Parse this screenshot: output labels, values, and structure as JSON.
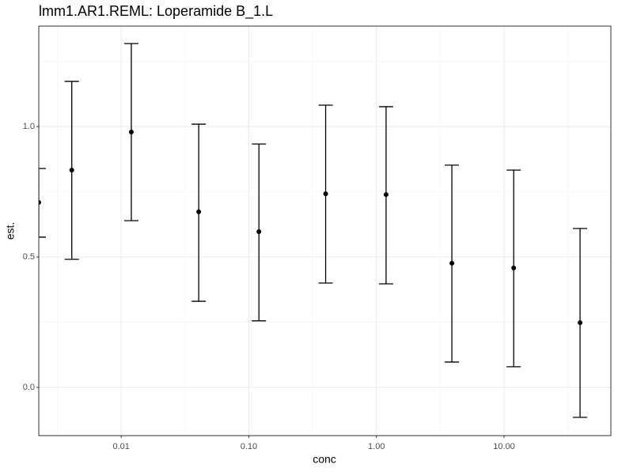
{
  "chart_data": {
    "type": "errorbar",
    "title": "lmm1.AR1.REML: Loperamide B_1.L",
    "x_label": "conc",
    "y_label": "est.",
    "x_scale": "log",
    "grid": true,
    "x": [
      0.00226,
      0.0041,
      0.012,
      0.0405,
      0.12,
      0.4,
      1.19,
      3.9,
      11.9,
      39.4
    ],
    "series": [
      {
        "color": "#000000",
        "values": [
          0.709,
          0.833,
          0.979,
          0.673,
          0.597,
          0.742,
          0.739,
          0.476,
          0.458,
          0.248
        ],
        "lower": [
          0.576,
          0.491,
          0.639,
          0.33,
          0.255,
          0.4,
          0.397,
          0.097,
          0.079,
          -0.115
        ],
        "upper": [
          0.839,
          1.173,
          1.318,
          1.009,
          0.933,
          1.082,
          1.076,
          0.852,
          0.833,
          0.609
        ]
      }
    ],
    "xlim": [
      0.00226,
      68.7
    ],
    "ylim": [
      -0.185,
      1.385
    ],
    "xticks": [
      0.01,
      {
        "value": 0.1,
        "label": "0.10"
      },
      {
        "value": 1,
        "label": "1.00"
      },
      {
        "value": 10,
        "label": "10.00"
      }
    ],
    "yticks": [
      {
        "value": 0,
        "label": "0.0"
      },
      0.5,
      {
        "value": 1,
        "label": "1.0"
      }
    ],
    "xminor": [
      0.0031623,
      0.031623,
      0.31623,
      3.1623,
      31.623
    ],
    "yminor": [
      0.25,
      0.75,
      1.25
    ]
  }
}
